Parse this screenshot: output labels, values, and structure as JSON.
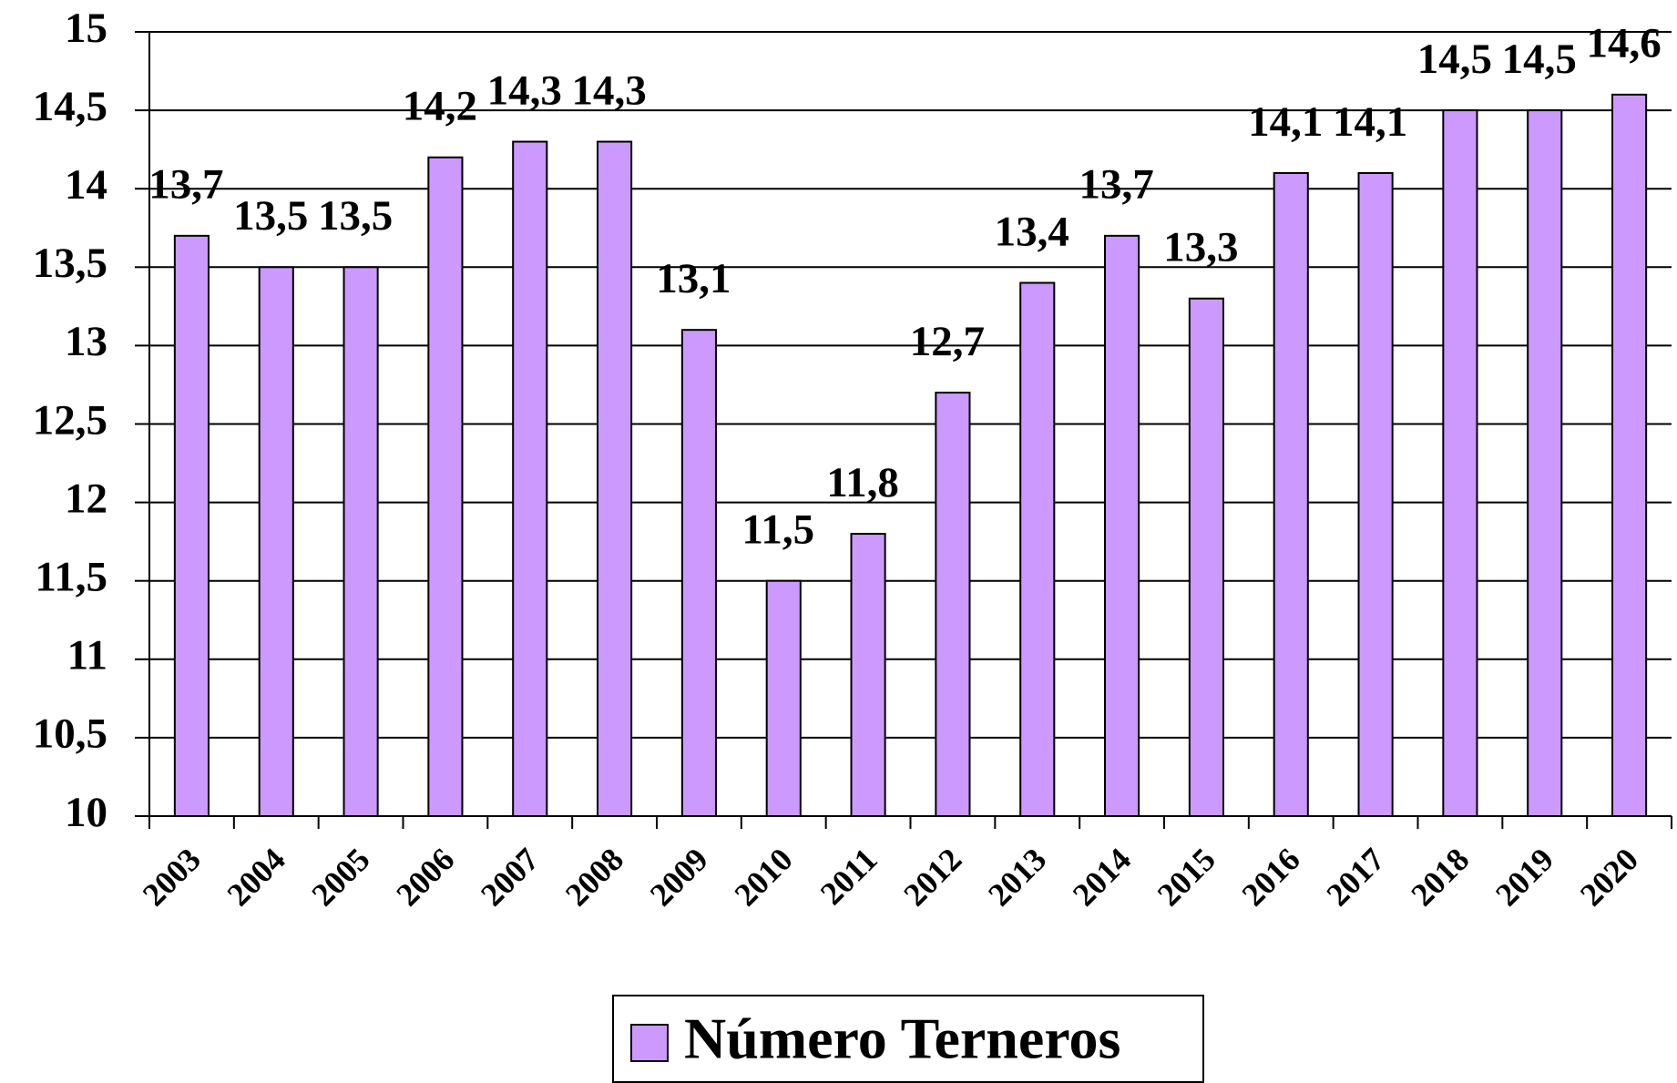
{
  "chart_data": {
    "type": "bar",
    "categories": [
      "2003",
      "2004",
      "2005",
      "2006",
      "2007",
      "2008",
      "2009",
      "2010",
      "2011",
      "2012",
      "2013",
      "2014",
      "2015",
      "2016",
      "2017",
      "2018",
      "2019",
      "2020"
    ],
    "series": [
      {
        "name": "Número Terneros",
        "color": "#cc99ff",
        "values": [
          13.7,
          13.5,
          13.5,
          14.2,
          14.3,
          14.3,
          13.1,
          11.5,
          11.8,
          12.7,
          13.4,
          13.7,
          13.3,
          14.1,
          14.1,
          14.5,
          14.5,
          14.6
        ],
        "value_labels": [
          "13,7",
          "13,5",
          "13,5",
          "14,2",
          "14,3",
          "14,3",
          "13,1",
          "11,5",
          "11,8",
          "12,7",
          "13,4",
          "13,7",
          "13,3",
          "14,1",
          "14,1",
          "14,5",
          "14,5",
          "14,6"
        ]
      }
    ],
    "ylim": [
      10,
      15
    ],
    "yticks": [
      10,
      {
        "value": 10.5,
        "label": "10,5"
      },
      11,
      {
        "value": 11.5,
        "label": "11,5"
      },
      12,
      {
        "value": 12.5,
        "label": "12,5"
      },
      13,
      {
        "value": 13.5,
        "label": "13,5"
      },
      14,
      {
        "value": 14.5,
        "label": "14,5"
      },
      15
    ],
    "grid": true,
    "legend": "bottom"
  }
}
